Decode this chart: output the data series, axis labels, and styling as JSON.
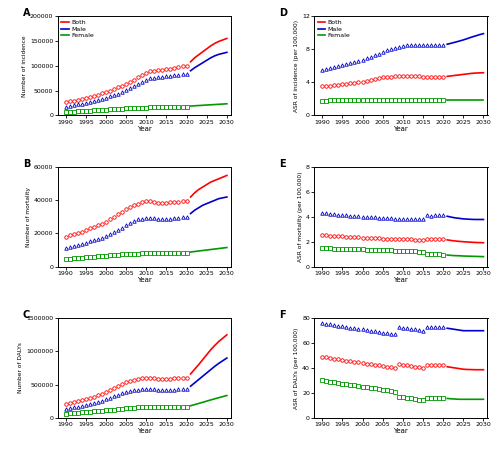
{
  "colors": {
    "both": "#FF0000",
    "male": "#0000CC",
    "female": "#009900"
  },
  "obs_years": [
    1990,
    1991,
    1992,
    1993,
    1994,
    1995,
    1996,
    1997,
    1998,
    1999,
    2000,
    2001,
    2002,
    2003,
    2004,
    2005,
    2006,
    2007,
    2008,
    2009,
    2010,
    2011,
    2012,
    2013,
    2014,
    2015,
    2016,
    2017,
    2018,
    2019,
    2020
  ],
  "pred_years": [
    2021,
    2022,
    2023,
    2024,
    2025,
    2026,
    2027,
    2028,
    2029,
    2030
  ],
  "A": {
    "ylabel": "Number of incidence",
    "ylim": [
      0,
      200000
    ],
    "yticks": [
      0,
      50000,
      100000,
      150000,
      200000
    ],
    "ytick_labels": [
      "0",
      "50000",
      "100000",
      "150000",
      "200000"
    ],
    "obs_both": [
      27000,
      28500,
      30000,
      31500,
      33000,
      35000,
      37000,
      39500,
      42000,
      44500,
      47000,
      50000,
      53000,
      56500,
      60000,
      64000,
      68000,
      72000,
      76500,
      81000,
      85000,
      89000,
      90000,
      91000,
      92000,
      93000,
      94000,
      95000,
      97000,
      99000,
      100000
    ],
    "obs_male": [
      18000,
      19500,
      21000,
      22500,
      24000,
      25500,
      27500,
      29500,
      31500,
      33500,
      36000,
      38500,
      41000,
      44000,
      47000,
      51000,
      55000,
      59000,
      63000,
      68000,
      72000,
      75000,
      76000,
      77000,
      78000,
      79000,
      80000,
      81000,
      82000,
      83000,
      84000
    ],
    "obs_female": [
      7000,
      7500,
      8000,
      8500,
      9000,
      9500,
      10000,
      10500,
      11000,
      11500,
      12000,
      12500,
      13000,
      13500,
      14000,
      14500,
      15000,
      15200,
      15500,
      15700,
      16000,
      16200,
      16400,
      16500,
      16700,
      16800,
      17000,
      17000,
      17000,
      17200,
      17500
    ],
    "pred_both": [
      108000,
      116000,
      122000,
      128000,
      134000,
      140000,
      145000,
      149000,
      152000,
      155000
    ],
    "pred_male": [
      90000,
      96000,
      101000,
      106000,
      111000,
      116000,
      120000,
      123000,
      125000,
      127000
    ],
    "pred_female": [
      19000,
      19500,
      20000,
      20500,
      21000,
      21500,
      22000,
      22500,
      23000,
      23500
    ]
  },
  "B": {
    "ylabel": "Number of mortality",
    "ylim": [
      0,
      60000
    ],
    "yticks": [
      0,
      20000,
      40000,
      60000
    ],
    "ytick_labels": [
      "0",
      "20000",
      "40000",
      "60000"
    ],
    "obs_both": [
      18000,
      18800,
      19500,
      20200,
      21000,
      22000,
      23000,
      24000,
      25000,
      26000,
      27000,
      28500,
      30000,
      31500,
      33000,
      34500,
      36000,
      37000,
      38000,
      38800,
      39500,
      39500,
      39000,
      38500,
      38500,
      38500,
      38800,
      39000,
      39200,
      39500,
      39800
    ],
    "obs_male": [
      11500,
      12000,
      12500,
      13000,
      13700,
      14500,
      15200,
      16000,
      16800,
      17500,
      18500,
      19500,
      20700,
      22000,
      23500,
      25000,
      26500,
      27500,
      28500,
      29000,
      29500,
      29500,
      29200,
      28800,
      28800,
      28800,
      29000,
      29200,
      29500,
      29800,
      30000
    ],
    "obs_female": [
      4500,
      4700,
      4900,
      5100,
      5300,
      5500,
      5700,
      5900,
      6100,
      6300,
      6500,
      6700,
      6900,
      7100,
      7300,
      7500,
      7600,
      7700,
      7800,
      7900,
      8000,
      8000,
      7900,
      7900,
      7900,
      7900,
      8000,
      8000,
      8100,
      8100,
      8200
    ],
    "pred_both": [
      42000,
      44500,
      46500,
      48000,
      49500,
      51000,
      52000,
      53000,
      54000,
      55000
    ],
    "pred_male": [
      32000,
      34000,
      35500,
      37000,
      38000,
      39000,
      40000,
      41000,
      41500,
      42000
    ],
    "pred_female": [
      8800,
      9100,
      9400,
      9700,
      10000,
      10300,
      10600,
      10900,
      11200,
      11500
    ]
  },
  "C": {
    "ylabel": "Number of DALYs",
    "ylim": [
      0,
      1500000
    ],
    "yticks": [
      0,
      500000,
      1000000,
      1500000
    ],
    "ytick_labels": [
      "0",
      "500000",
      "1000000",
      "1500000"
    ],
    "obs_both": [
      200000,
      215000,
      230000,
      245000,
      260000,
      275000,
      295000,
      315000,
      335000,
      360000,
      385000,
      415000,
      445000,
      475000,
      505000,
      535000,
      555000,
      575000,
      585000,
      595000,
      600000,
      600000,
      595000,
      590000,
      585000,
      585000,
      590000,
      592000,
      595000,
      598000,
      600000
    ],
    "obs_male": [
      135000,
      145000,
      155000,
      165000,
      178000,
      190000,
      205000,
      220000,
      238000,
      255000,
      275000,
      297000,
      320000,
      342000,
      365000,
      385000,
      400000,
      415000,
      422000,
      428000,
      432000,
      432000,
      428000,
      424000,
      420000,
      420000,
      422000,
      424000,
      426000,
      428000,
      430000
    ],
    "obs_female": [
      60000,
      65000,
      70000,
      75000,
      80000,
      85000,
      90000,
      95000,
      100000,
      105000,
      110000,
      115000,
      122000,
      128000,
      135000,
      142000,
      147000,
      152000,
      157000,
      162000,
      165000,
      165000,
      163000,
      162000,
      161000,
      160000,
      161000,
      162000,
      163000,
      164000,
      165000
    ],
    "pred_both": [
      660000,
      730000,
      800000,
      875000,
      950000,
      1025000,
      1090000,
      1150000,
      1200000,
      1250000
    ],
    "pred_male": [
      475000,
      525000,
      575000,
      625000,
      675000,
      725000,
      775000,
      820000,
      860000,
      900000
    ],
    "pred_female": [
      180000,
      197000,
      215000,
      232000,
      250000,
      268000,
      285000,
      302000,
      318000,
      335000
    ]
  },
  "D": {
    "ylabel": "ASR of incidence (per 100,000)",
    "ylim": [
      0,
      12
    ],
    "yticks": [
      0,
      4,
      8,
      12
    ],
    "ytick_labels": [
      "0",
      "4",
      "8",
      "12"
    ],
    "obs_both": [
      3.5,
      3.55,
      3.6,
      3.65,
      3.7,
      3.75,
      3.82,
      3.88,
      3.95,
      4.0,
      4.1,
      4.2,
      4.3,
      4.4,
      4.5,
      4.6,
      4.65,
      4.7,
      4.72,
      4.72,
      4.75,
      4.75,
      4.75,
      4.73,
      4.72,
      4.7,
      4.68,
      4.67,
      4.66,
      4.65,
      4.65
    ],
    "obs_male": [
      5.5,
      5.62,
      5.72,
      5.82,
      5.94,
      6.06,
      6.18,
      6.3,
      6.45,
      6.6,
      6.75,
      6.92,
      7.1,
      7.28,
      7.48,
      7.7,
      7.88,
      8.05,
      8.18,
      8.28,
      8.38,
      8.45,
      8.5,
      8.52,
      8.52,
      8.5,
      8.5,
      8.5,
      8.5,
      8.5,
      8.5
    ],
    "obs_female": [
      1.8,
      1.8,
      1.81,
      1.82,
      1.83,
      1.85,
      1.86,
      1.88,
      1.89,
      1.9,
      1.9,
      1.9,
      1.9,
      1.9,
      1.9,
      1.9,
      1.89,
      1.89,
      1.88,
      1.88,
      1.88,
      1.87,
      1.87,
      1.87,
      1.87,
      1.87,
      1.87,
      1.87,
      1.87,
      1.87,
      1.87
    ],
    "pred_both": [
      4.72,
      4.78,
      4.84,
      4.9,
      4.96,
      5.02,
      5.08,
      5.12,
      5.14,
      5.16
    ],
    "pred_male": [
      8.6,
      8.72,
      8.85,
      8.98,
      9.12,
      9.28,
      9.45,
      9.6,
      9.75,
      9.88
    ],
    "pred_female": [
      1.87,
      1.87,
      1.87,
      1.87,
      1.87,
      1.87,
      1.87,
      1.87,
      1.87,
      1.87
    ]
  },
  "E": {
    "ylabel": "ASR of mortality (per 100,000)",
    "ylim": [
      0,
      8
    ],
    "yticks": [
      0,
      2,
      4,
      6,
      8
    ],
    "ytick_labels": [
      "0",
      "2",
      "4",
      "6",
      "8"
    ],
    "obs_both": [
      2.55,
      2.52,
      2.5,
      2.48,
      2.46,
      2.44,
      2.42,
      2.4,
      2.38,
      2.36,
      2.34,
      2.32,
      2.3,
      2.28,
      2.26,
      2.25,
      2.24,
      2.23,
      2.22,
      2.21,
      2.2,
      2.19,
      2.18,
      2.17,
      2.16,
      2.15,
      2.22,
      2.2,
      2.22,
      2.22,
      2.22
    ],
    "obs_male": [
      4.3,
      4.28,
      4.25,
      4.22,
      4.18,
      4.15,
      4.12,
      4.1,
      4.07,
      4.05,
      4.03,
      4.0,
      3.98,
      3.95,
      3.93,
      3.9,
      3.88,
      3.87,
      3.86,
      3.85,
      3.84,
      3.83,
      3.82,
      3.81,
      3.8,
      3.79,
      4.15,
      4.1,
      4.15,
      4.15,
      4.15
    ],
    "obs_female": [
      1.5,
      1.48,
      1.46,
      1.45,
      1.44,
      1.43,
      1.42,
      1.41,
      1.4,
      1.39,
      1.38,
      1.37,
      1.36,
      1.35,
      1.33,
      1.32,
      1.31,
      1.3,
      1.28,
      1.27,
      1.26,
      1.25,
      1.23,
      1.22,
      1.21,
      1.2,
      1.05,
      1.02,
      1.0,
      0.98,
      0.97
    ],
    "pred_both": [
      2.15,
      2.1,
      2.06,
      2.03,
      2.0,
      1.98,
      1.96,
      1.94,
      1.93,
      1.92
    ],
    "pred_male": [
      4.05,
      3.98,
      3.92,
      3.88,
      3.84,
      3.82,
      3.8,
      3.79,
      3.79,
      3.79
    ],
    "pred_female": [
      0.93,
      0.9,
      0.88,
      0.87,
      0.85,
      0.84,
      0.83,
      0.82,
      0.81,
      0.8
    ]
  },
  "F": {
    "ylabel": "ASR of DALYs (per 100,000)",
    "ylim": [
      0,
      80
    ],
    "yticks": [
      0,
      20,
      40,
      60,
      80
    ],
    "ytick_labels": [
      "0",
      "20",
      "40",
      "60",
      "80"
    ],
    "obs_both": [
      49,
      48.5,
      48,
      47.5,
      47,
      46.5,
      46,
      45.5,
      45,
      44.5,
      44,
      43.5,
      43,
      42.5,
      42,
      41.5,
      41,
      40.5,
      40,
      43,
      42.5,
      42,
      41.5,
      41,
      40.5,
      40,
      42,
      42,
      42,
      42,
      42
    ],
    "obs_male": [
      76,
      75.5,
      75,
      74.5,
      74,
      73.5,
      73,
      72.5,
      72,
      71.5,
      71,
      70.5,
      70,
      69.5,
      69,
      68.5,
      68,
      67.5,
      67,
      73,
      72.5,
      72,
      71.5,
      71,
      70.5,
      70,
      73,
      73,
      73,
      73,
      73
    ],
    "obs_female": [
      30,
      29.5,
      29,
      28.5,
      28,
      27.5,
      27,
      26.5,
      26,
      25.5,
      25,
      24.5,
      24,
      23.5,
      23,
      22.5,
      22,
      21.5,
      21,
      17,
      16.5,
      16,
      15.5,
      15,
      14.5,
      14,
      16,
      16,
      16,
      16,
      16
    ],
    "pred_both": [
      41,
      40.5,
      40,
      39.5,
      39,
      38.8,
      38.7,
      38.6,
      38.6,
      38.6
    ],
    "pred_male": [
      72,
      71.5,
      71,
      70.5,
      70,
      70,
      70,
      70,
      70,
      70
    ],
    "pred_female": [
      15.5,
      15.2,
      15.0,
      14.8,
      14.8,
      14.8,
      14.8,
      14.8,
      14.8,
      14.8
    ]
  },
  "subplot_labels": [
    "A",
    "B",
    "C",
    "D",
    "E",
    "F"
  ],
  "xlabel": "Year",
  "xlim": [
    1988,
    2031
  ],
  "xticks": [
    1990,
    1995,
    2000,
    2005,
    2010,
    2015,
    2020,
    2025,
    2030
  ]
}
